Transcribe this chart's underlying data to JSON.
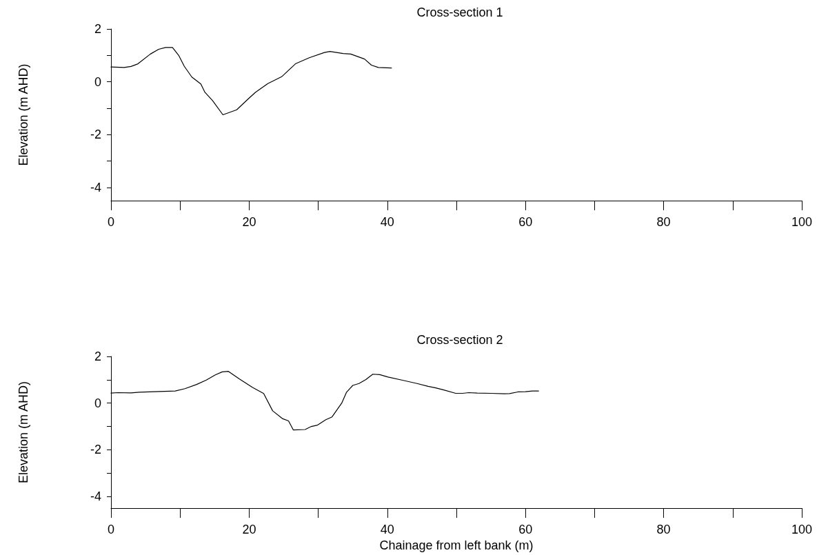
{
  "chart_data": [
    {
      "type": "line",
      "title": "Cross-section 1",
      "ylabel": "Elevation (m AHD)",
      "xlim": [
        0,
        100
      ],
      "ylim": [
        -4.5,
        2
      ],
      "xticks": [
        0,
        {
          "value": 10,
          "label": null
        },
        20,
        {
          "value": 30,
          "label": null
        },
        40,
        {
          "value": 50,
          "label": null
        },
        60,
        {
          "value": 70,
          "label": null
        },
        80,
        {
          "value": 90,
          "label": null
        },
        100
      ],
      "yticks": [
        -4,
        {
          "value": -3,
          "label": null
        },
        -2,
        {
          "value": -1,
          "label": null
        },
        0,
        {
          "value": 1,
          "label": null
        },
        2
      ],
      "grid": false,
      "marker": "none",
      "line_style": "solid",
      "series": [
        {
          "color": "#000000",
          "x": [
            0,
            1.9,
            2.9,
            3.9,
            5.7,
            6.9,
            7.9,
            8.9,
            9.8,
            10.6,
            11.7,
            13.0,
            13.6,
            14.7,
            16.2,
            18.2,
            19.7,
            20.9,
            22.7,
            24.7,
            26.7,
            28.7,
            30.9,
            31.7,
            33.6,
            34.7,
            36.7,
            37.7,
            38.7,
            40.6
          ],
          "values": [
            0.56,
            0.54,
            0.58,
            0.68,
            1.05,
            1.23,
            1.3,
            1.3,
            1.0,
            0.59,
            0.18,
            -0.08,
            -0.4,
            -0.71,
            -1.25,
            -1.06,
            -0.69,
            -0.4,
            -0.07,
            0.19,
            0.68,
            0.91,
            1.11,
            1.15,
            1.07,
            1.05,
            0.86,
            0.63,
            0.54,
            0.52
          ]
        }
      ]
    },
    {
      "type": "line",
      "title": "Cross-section 2",
      "xlabel": "Chainage from left bank (m)",
      "ylabel": "Elevation (m AHD)",
      "xlim": [
        0,
        100
      ],
      "ylim": [
        -4.5,
        2
      ],
      "xticks": [
        0,
        {
          "value": 10,
          "label": null
        },
        20,
        {
          "value": 30,
          "label": null
        },
        40,
        {
          "value": 50,
          "label": null
        },
        60,
        {
          "value": 70,
          "label": null
        },
        80,
        {
          "value": 90,
          "label": null
        },
        100
      ],
      "yticks": [
        -4,
        {
          "value": -3,
          "label": null
        },
        -2,
        {
          "value": -1,
          "label": null
        },
        0,
        {
          "value": 1,
          "label": null
        },
        2
      ],
      "grid": false,
      "marker": "none",
      "line_style": "solid",
      "series": [
        {
          "color": "#000000",
          "x": [
            0,
            1,
            2.9,
            4.1,
            7,
            9.3,
            10.7,
            12.4,
            13.8,
            15.1,
            16.1,
            17,
            18.6,
            20.5,
            22.1,
            23.4,
            24.8,
            25.7,
            26.4,
            28.1,
            29,
            29.9,
            31.1,
            32,
            32.7,
            33.4,
            34.1,
            35,
            35.9,
            36.9,
            37.9,
            38.9,
            40.1,
            42.2,
            44.3,
            45.9,
            46.9,
            48,
            49.9,
            50.9,
            51.8,
            53,
            55,
            56.9,
            57.7,
            58.9,
            60,
            61,
            61.9
          ],
          "values": [
            0.43,
            0.45,
            0.44,
            0.47,
            0.5,
            0.52,
            0.62,
            0.8,
            0.99,
            1.21,
            1.34,
            1.36,
            1.03,
            0.67,
            0.41,
            -0.33,
            -0.66,
            -0.76,
            -1.15,
            -1.13,
            -1.0,
            -0.94,
            -0.71,
            -0.59,
            -0.29,
            0,
            0.47,
            0.76,
            0.84,
            1.01,
            1.24,
            1.22,
            1.12,
            0.98,
            0.84,
            0.72,
            0.66,
            0.58,
            0.42,
            0.42,
            0.45,
            0.43,
            0.42,
            0.4,
            0.41,
            0.48,
            0.49,
            0.52,
            0.52
          ]
        }
      ]
    }
  ]
}
